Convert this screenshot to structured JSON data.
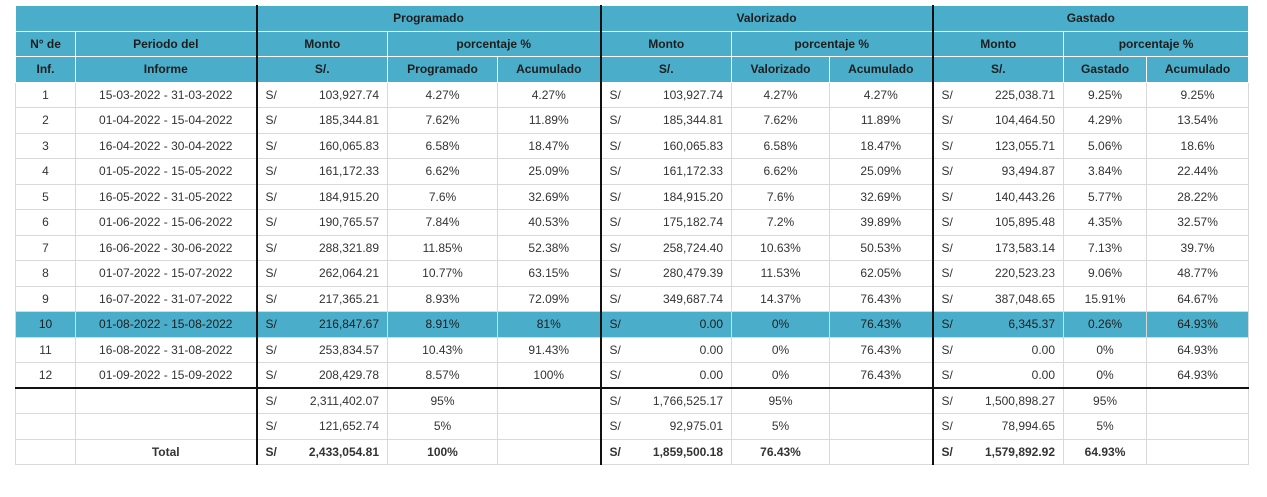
{
  "headers": {
    "groups": [
      "Programado",
      "Valorizado",
      "Gastado"
    ],
    "row2": {
      "n": "N° de",
      "periodo": "Periodo del",
      "monto": "Monto",
      "porcentaje": "porcentaje %"
    },
    "row3": {
      "n": "Inf.",
      "periodo": "Informe",
      "currency": "S/.",
      "programado": "Programado",
      "valorizado": "Valorizado",
      "gastado": "Gastado",
      "acumulado": "Acumulado"
    }
  },
  "currency_symbol": "S/",
  "rows": [
    {
      "n": "1",
      "periodo": "15-03-2022 - 31-03-2022",
      "p_monto": "103,927.74",
      "p_pct": "4.27%",
      "p_acum": "4.27%",
      "v_monto": "103,927.74",
      "v_pct": "4.27%",
      "v_acum": "4.27%",
      "g_monto": "225,038.71",
      "g_pct": "9.25%",
      "g_acum": "9.25%"
    },
    {
      "n": "2",
      "periodo": "01-04-2022 - 15-04-2022",
      "p_monto": "185,344.81",
      "p_pct": "7.62%",
      "p_acum": "11.89%",
      "v_monto": "185,344.81",
      "v_pct": "7.62%",
      "v_acum": "11.89%",
      "g_monto": "104,464.50",
      "g_pct": "4.29%",
      "g_acum": "13.54%"
    },
    {
      "n": "3",
      "periodo": "16-04-2022 - 30-04-2022",
      "p_monto": "160,065.83",
      "p_pct": "6.58%",
      "p_acum": "18.47%",
      "v_monto": "160,065.83",
      "v_pct": "6.58%",
      "v_acum": "18.47%",
      "g_monto": "123,055.71",
      "g_pct": "5.06%",
      "g_acum": "18.6%"
    },
    {
      "n": "4",
      "periodo": "01-05-2022 - 15-05-2022",
      "p_monto": "161,172.33",
      "p_pct": "6.62%",
      "p_acum": "25.09%",
      "v_monto": "161,172.33",
      "v_pct": "6.62%",
      "v_acum": "25.09%",
      "g_monto": "93,494.87",
      "g_pct": "3.84%",
      "g_acum": "22.44%"
    },
    {
      "n": "5",
      "periodo": "16-05-2022 - 31-05-2022",
      "p_monto": "184,915.20",
      "p_pct": "7.6%",
      "p_acum": "32.69%",
      "v_monto": "184,915.20",
      "v_pct": "7.6%",
      "v_acum": "32.69%",
      "g_monto": "140,443.26",
      "g_pct": "5.77%",
      "g_acum": "28.22%"
    },
    {
      "n": "6",
      "periodo": "01-06-2022 - 15-06-2022",
      "p_monto": "190,765.57",
      "p_pct": "7.84%",
      "p_acum": "40.53%",
      "v_monto": "175,182.74",
      "v_pct": "7.2%",
      "v_acum": "39.89%",
      "g_monto": "105,895.48",
      "g_pct": "4.35%",
      "g_acum": "32.57%"
    },
    {
      "n": "7",
      "periodo": "16-06-2022 - 30-06-2022",
      "p_monto": "288,321.89",
      "p_pct": "11.85%",
      "p_acum": "52.38%",
      "v_monto": "258,724.40",
      "v_pct": "10.63%",
      "v_acum": "50.53%",
      "g_monto": "173,583.14",
      "g_pct": "7.13%",
      "g_acum": "39.7%"
    },
    {
      "n": "8",
      "periodo": "01-07-2022 - 15-07-2022",
      "p_monto": "262,064.21",
      "p_pct": "10.77%",
      "p_acum": "63.15%",
      "v_monto": "280,479.39",
      "v_pct": "11.53%",
      "v_acum": "62.05%",
      "g_monto": "220,523.23",
      "g_pct": "9.06%",
      "g_acum": "48.77%"
    },
    {
      "n": "9",
      "periodo": "16-07-2022 - 31-07-2022",
      "p_monto": "217,365.21",
      "p_pct": "8.93%",
      "p_acum": "72.09%",
      "v_monto": "349,687.74",
      "v_pct": "14.37%",
      "v_acum": "76.43%",
      "g_monto": "387,048.65",
      "g_pct": "15.91%",
      "g_acum": "64.67%"
    },
    {
      "n": "10",
      "periodo": "01-08-2022 - 15-08-2022",
      "p_monto": "216,847.67",
      "p_pct": "8.91%",
      "p_acum": "81%",
      "v_monto": "0.00",
      "v_pct": "0%",
      "v_acum": "76.43%",
      "g_monto": "6,345.37",
      "g_pct": "0.26%",
      "g_acum": "64.93%",
      "highlighted": true
    },
    {
      "n": "11",
      "periodo": "16-08-2022 - 31-08-2022",
      "p_monto": "253,834.57",
      "p_pct": "10.43%",
      "p_acum": "91.43%",
      "v_monto": "0.00",
      "v_pct": "0%",
      "v_acum": "76.43%",
      "g_monto": "0.00",
      "g_pct": "0%",
      "g_acum": "64.93%"
    },
    {
      "n": "12",
      "periodo": "01-09-2022 - 15-09-2022",
      "p_monto": "208,429.78",
      "p_pct": "8.57%",
      "p_acum": "100%",
      "v_monto": "0.00",
      "v_pct": "0%",
      "v_acum": "76.43%",
      "g_monto": "0.00",
      "g_pct": "0%",
      "g_acum": "64.93%"
    }
  ],
  "summary": [
    {
      "p_monto": "2,311,402.07",
      "p_pct": "95%",
      "v_monto": "1,766,525.17",
      "v_pct": "95%",
      "g_monto": "1,500,898.27",
      "g_pct": "95%"
    },
    {
      "p_monto": "121,652.74",
      "p_pct": "5%",
      "v_monto": "92,975.01",
      "v_pct": "5%",
      "g_monto": "78,994.65",
      "g_pct": "5%"
    }
  ],
  "total": {
    "label": "Total",
    "p_monto": "2,433,054.81",
    "p_pct": "100%",
    "v_monto": "1,859,500.18",
    "v_pct": "76.43%",
    "g_monto": "1,579,892.92",
    "g_pct": "64.93%"
  },
  "colors": {
    "header": "#4aaecb",
    "highlight": "#4aaecb"
  }
}
